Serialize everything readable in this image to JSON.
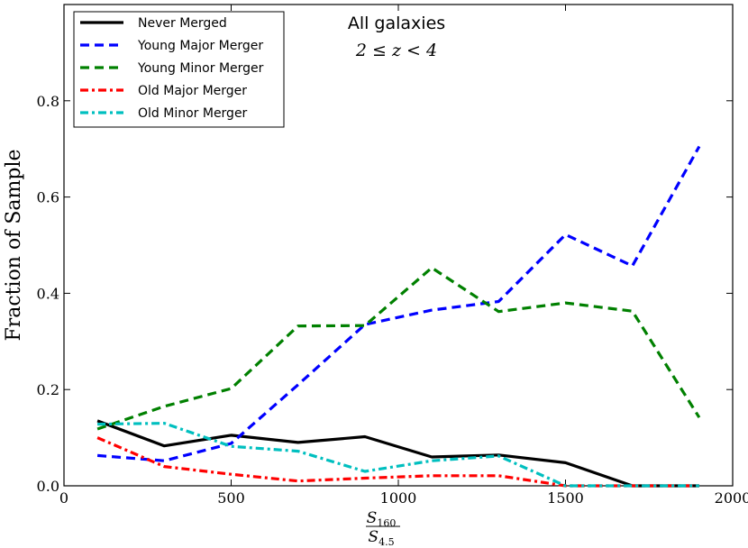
{
  "chart_data": {
    "type": "line",
    "title": "All galaxies",
    "subtitle": "2 ≤ z < 4",
    "ylabel": "Fraction of Sample",
    "xlabel_numerator": "S",
    "xlabel_numerator_sub": "160",
    "xlabel_denominator": "S",
    "xlabel_denominator_sub": "4.5",
    "xlim": [
      0,
      2000
    ],
    "ylim": [
      0.0,
      1.0
    ],
    "xticks": [
      0,
      500,
      1000,
      1500,
      2000
    ],
    "xtick_labels": [
      "0",
      "500",
      "1000",
      "1500",
      "2000"
    ],
    "yticks": [
      0.0,
      0.2,
      0.4,
      0.6,
      0.8
    ],
    "ytick_labels": [
      "0.0",
      "0.2",
      "0.4",
      "0.6",
      "0.8"
    ],
    "legend_position": "top-left",
    "x": [
      100,
      300,
      500,
      700,
      900,
      1100,
      1300,
      1500,
      1700,
      1900
    ],
    "series": [
      {
        "name": "Never Merged",
        "color": "#000000",
        "style": "solid",
        "values": [
          0.135,
          0.083,
          0.105,
          0.09,
          0.102,
          0.06,
          0.064,
          0.048,
          0.0,
          0.0
        ]
      },
      {
        "name": "Young Major Merger",
        "color": "#0000ff",
        "style": "dashed",
        "values": [
          0.063,
          0.052,
          0.088,
          0.21,
          0.335,
          0.365,
          0.383,
          0.522,
          0.457,
          0.705
        ]
      },
      {
        "name": "Young Minor Merger",
        "color": "#008000",
        "style": "dashed",
        "values": [
          0.118,
          0.165,
          0.202,
          0.332,
          0.333,
          0.453,
          0.362,
          0.38,
          0.363,
          0.142
        ]
      },
      {
        "name": "Old Major Merger",
        "color": "#ff0000",
        "style": "dashdot",
        "values": [
          0.1,
          0.04,
          0.024,
          0.01,
          0.016,
          0.021,
          0.021,
          0.0,
          0.0,
          0.0
        ]
      },
      {
        "name": "Old Minor Merger",
        "color": "#00bfbf",
        "style": "dashdot",
        "values": [
          0.128,
          0.13,
          0.082,
          0.072,
          0.03,
          0.052,
          0.062,
          0.0,
          0.0,
          0.0
        ]
      }
    ]
  }
}
